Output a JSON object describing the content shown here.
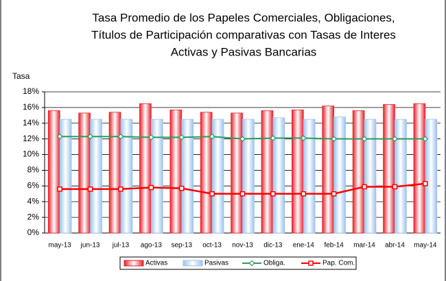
{
  "chart_data": {
    "type": "bar_line",
    "title": [
      "Tasa Promedio de los Papeles Comerciales, Obligaciones,",
      "Títulos de Participación comparativas con Tasas de Interes",
      "Activas y Pasivas Bancarias"
    ],
    "ylabel": "Tasa",
    "categories": [
      "may-13",
      "jun-13",
      "jul-13",
      "ago-13",
      "sep-13",
      "oct-13",
      "nov-13",
      "dic-13",
      "ene-14",
      "feb-14",
      "mar-14",
      "abr-14",
      "may-14"
    ],
    "series": [
      {
        "name": "Activas",
        "kind": "bar",
        "color": "#e8202a",
        "values": [
          15.6,
          15.3,
          15.4,
          16.5,
          15.7,
          15.4,
          15.3,
          15.6,
          15.7,
          16.2,
          15.6,
          16.4,
          16.5
        ]
      },
      {
        "name": "Pasivas",
        "kind": "bar",
        "color": "#9cc3ee",
        "values": [
          14.5,
          14.5,
          14.5,
          14.5,
          14.5,
          14.5,
          14.5,
          14.7,
          14.5,
          14.8,
          14.5,
          14.5,
          14.5
        ]
      },
      {
        "name": "Obliga.",
        "kind": "line",
        "marker": "diamond",
        "color": "#2f9a5c",
        "values": [
          12.3,
          12.3,
          12.3,
          12.2,
          12.2,
          12.3,
          12.0,
          12.1,
          12.1,
          12.0,
          12.0,
          12.0,
          12.0
        ]
      },
      {
        "name": "Pap. Com.",
        "kind": "line",
        "marker": "square",
        "color": "#ff0000",
        "values": [
          5.6,
          5.6,
          5.6,
          5.8,
          5.7,
          5.0,
          5.0,
          5.0,
          5.0,
          5.0,
          5.9,
          5.9,
          6.3
        ]
      }
    ],
    "ylim": [
      0,
      18
    ],
    "yticks": [
      {
        "value": 0,
        "label": "0%"
      },
      {
        "value": 2,
        "label": "2%"
      },
      {
        "value": 4,
        "label": "4%"
      },
      {
        "value": 6,
        "label": "6%"
      },
      {
        "value": 8,
        "label": "8%"
      },
      {
        "value": 10,
        "label": "10%"
      },
      {
        "value": 12,
        "label": "12%"
      },
      {
        "value": 14,
        "label": "14%"
      },
      {
        "value": 16,
        "label": "16%"
      },
      {
        "value": 18,
        "label": "18%"
      }
    ],
    "grid": true,
    "legend": "bottom"
  }
}
